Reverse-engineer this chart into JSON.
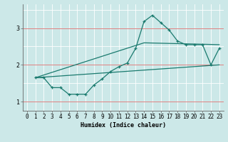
{
  "xlabel": "Humidex (Indice chaleur)",
  "bg_color": "#cce8e8",
  "grid_color_white": "#ffffff",
  "grid_color_red": "#e08080",
  "line_color": "#1a7a6e",
  "xlim": [
    -0.5,
    23.5
  ],
  "ylim": [
    0.75,
    3.65
  ],
  "yticks": [
    1,
    2,
    3
  ],
  "xticks": [
    0,
    1,
    2,
    3,
    4,
    5,
    6,
    7,
    8,
    9,
    10,
    11,
    12,
    13,
    14,
    15,
    16,
    17,
    18,
    19,
    20,
    21,
    22,
    23
  ],
  "line1_x": [
    1,
    2,
    3,
    4,
    5,
    6,
    7,
    8,
    9,
    10,
    11,
    12,
    13,
    14,
    15,
    16,
    17,
    18,
    19,
    20,
    21,
    22,
    23
  ],
  "line1_y": [
    1.65,
    1.65,
    1.38,
    1.38,
    1.2,
    1.2,
    1.2,
    1.45,
    1.62,
    1.82,
    1.95,
    2.05,
    2.45,
    3.18,
    3.35,
    3.15,
    2.95,
    2.65,
    2.55,
    2.55,
    2.55,
    2.0,
    2.45
  ],
  "line2_x": [
    1,
    23
  ],
  "line2_y": [
    1.65,
    2.0
  ],
  "line3_x": [
    1,
    14,
    23
  ],
  "line3_y": [
    1.65,
    2.6,
    2.55
  ],
  "xlabel_fontsize": 6,
  "tick_fontsize": 5.5
}
